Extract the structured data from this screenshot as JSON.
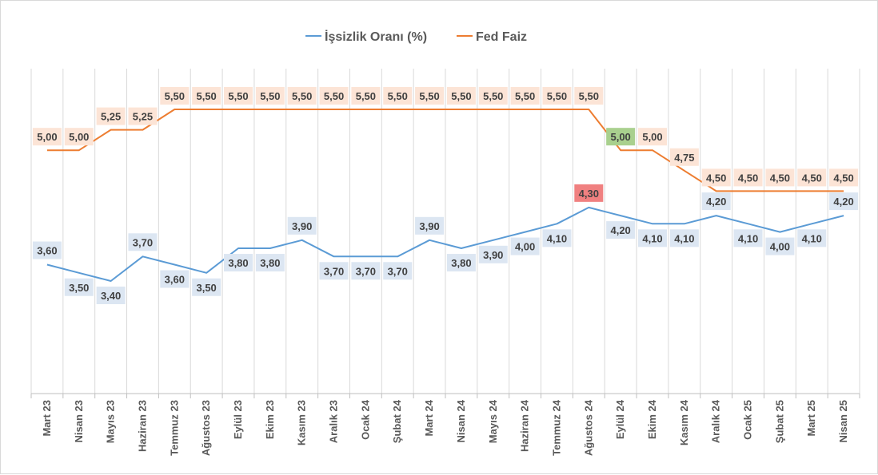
{
  "chart_data": {
    "type": "line",
    "title": "",
    "xlabel": "",
    "ylabel": "",
    "categories": [
      "Mart 23",
      "Nisan 23",
      "Mayıs 23",
      "Haziran 23",
      "Temmuz 23",
      "Ağustos 23",
      "Eylül 23",
      "Ekim 23",
      "Kasım 23",
      "Aralık 23",
      "Ocak 24",
      "Şubat 24",
      "Mart 24",
      "Nisan 24",
      "Mayıs 24",
      "Haziran 24",
      "Temmuz 24",
      "Ağustos 24",
      "Eylül 24",
      "Ekim 24",
      "Kasım 24",
      "Aralık 24",
      "Ocak 25",
      "Şubat 25",
      "Mart 25",
      "Nisan 25"
    ],
    "legend_position": "top",
    "grid": "vertical",
    "series": [
      {
        "name": "İşsizlik Oranı (%)",
        "color": "#5b9bd5",
        "label_fill": "#dce6f2",
        "values": [
          3.6,
          3.5,
          3.4,
          3.7,
          3.6,
          3.5,
          3.8,
          3.8,
          3.9,
          3.7,
          3.7,
          3.7,
          3.9,
          3.8,
          3.9,
          4.0,
          4.1,
          4.3,
          4.2,
          4.1,
          4.1,
          4.2,
          4.1,
          4.0,
          4.1,
          4.2
        ],
        "labels": [
          "3,60",
          "3,50",
          "3,40",
          "3,70",
          "3,60",
          "3,50",
          "3,80",
          "3,80",
          "3,90",
          "3,70",
          "3,70",
          "3,70",
          "3,90",
          "3,80",
          "3,90",
          "4,00",
          "4,10",
          "4,30",
          "4,20",
          "4,10",
          "4,10",
          "4,20",
          "4,10",
          "4,00",
          "4,10",
          "4,20"
        ],
        "highlight": {
          "index": 17,
          "fill": "#f08080"
        }
      },
      {
        "name": "Fed Faiz",
        "color": "#ed7d31",
        "label_fill": "#fce4d6",
        "values": [
          5.0,
          5.0,
          5.25,
          5.25,
          5.5,
          5.5,
          5.5,
          5.5,
          5.5,
          5.5,
          5.5,
          5.5,
          5.5,
          5.5,
          5.5,
          5.5,
          5.5,
          5.5,
          5.0,
          5.0,
          4.75,
          4.5,
          4.5,
          4.5,
          4.5,
          4.5
        ],
        "labels": [
          "5,00",
          "5,00",
          "5,25",
          "5,25",
          "5,50",
          "5,50",
          "5,50",
          "5,50",
          "5,50",
          "5,50",
          "5,50",
          "5,50",
          "5,50",
          "5,50",
          "5,50",
          "5,50",
          "5,50",
          "5,50",
          "5,00",
          "5,00",
          "4,75",
          "4,50",
          "4,50",
          "4,50",
          "4,50",
          "4,50"
        ],
        "highlight": {
          "index": 18,
          "fill": "#a9d08e"
        }
      }
    ]
  }
}
